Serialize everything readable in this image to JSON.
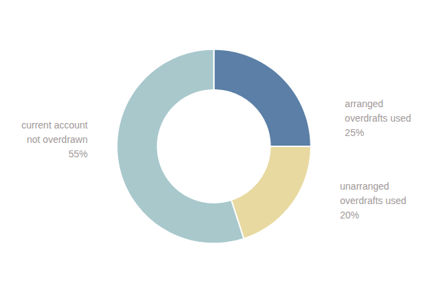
{
  "chart_data": {
    "type": "pie",
    "categories": [
      "arranged\noverdrafts used\n25%",
      "unarranged\noverdrafts used\n20%",
      "current account\nnot overdrawn\n55%"
    ],
    "values": [
      25,
      20,
      55
    ],
    "colors": [
      "#5b7fa6",
      "#e8d9a0",
      "#a8c8cc"
    ]
  }
}
